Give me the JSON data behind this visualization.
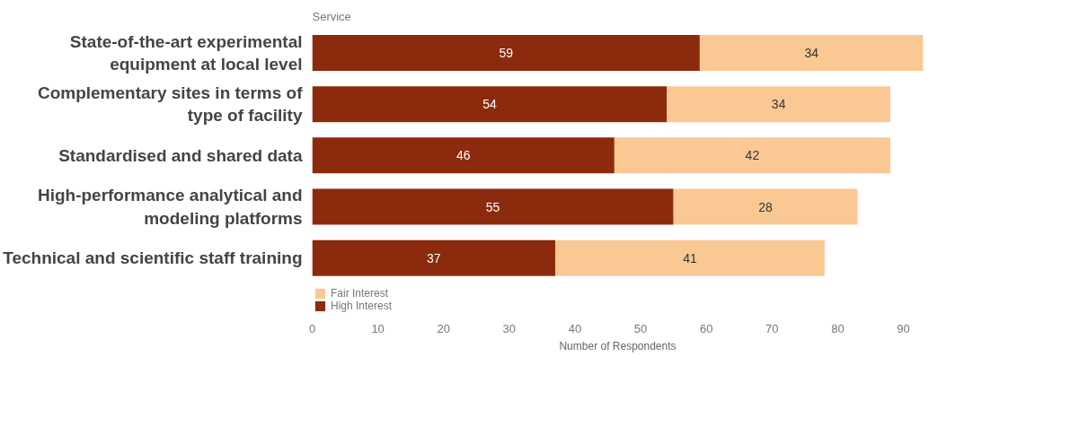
{
  "chart_data": {
    "type": "bar",
    "orientation": "horizontal",
    "stacked": true,
    "ylabel": "Service",
    "xlabel": "Number of Respondents",
    "categories": [
      "State-of-the-art experimental equipment at local level",
      "Complementary sites in terms of type of facility",
      "Standardised and shared data",
      "High-performance analytical and modeling platforms",
      "Technical and scientific staff training"
    ],
    "series": [
      {
        "name": "High Interest",
        "color": "#8b2a0c",
        "values": [
          59,
          54,
          46,
          55,
          37
        ]
      },
      {
        "name": "Fair Interest",
        "color": "#f9c893",
        "values": [
          34,
          34,
          42,
          28,
          41
        ]
      }
    ],
    "xlim": [
      0,
      93
    ],
    "xticks": [
      0,
      10,
      20,
      30,
      40,
      50,
      60,
      70,
      80,
      90
    ],
    "data_labels": true,
    "grid": false,
    "legend": "bottom left"
  }
}
